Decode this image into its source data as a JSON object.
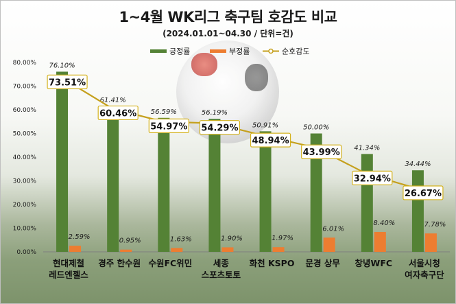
{
  "title": "1~4월 WK리그 축구팀 호감도 비교",
  "subtitle": "(2024.01.01~04.30 / 단위=건)",
  "colors": {
    "positive": "#548235",
    "negative": "#ed7d31",
    "net": "#c5a01d"
  },
  "chart_data": {
    "type": "bar",
    "title": "1~4월 WK리그 축구팀 호감도 비교",
    "subtitle": "(2024.01.01~04.30 / 단위=건)",
    "categories": [
      [
        "현대제철",
        "레드엔젤스"
      ],
      [
        "경주 한수원"
      ],
      [
        "수원FC위민"
      ],
      [
        "세종",
        "스포츠토토"
      ],
      [
        "화천 KSPO"
      ],
      [
        "문경 상무"
      ],
      [
        "창녕WFC"
      ],
      [
        "서울시청",
        "여자축구단"
      ]
    ],
    "series": [
      {
        "name": "긍정률",
        "type": "bar",
        "values": [
          76.1,
          61.41,
          56.59,
          56.19,
          50.91,
          50.0,
          41.34,
          34.44
        ],
        "labels": [
          "76.10%",
          "61.41%",
          "56.59%",
          "56.19%",
          "50.91%",
          "50.00%",
          "41.34%",
          "34.44%"
        ]
      },
      {
        "name": "부정률",
        "type": "bar",
        "values": [
          2.59,
          0.95,
          1.63,
          1.9,
          1.97,
          6.01,
          8.4,
          7.78
        ],
        "labels": [
          "2.59%",
          "0.95%",
          "1.63%",
          "1.90%",
          "1.97%",
          "6.01%",
          "8.40%",
          "7.78%"
        ]
      },
      {
        "name": "순호감도",
        "type": "line",
        "values": [
          73.51,
          60.46,
          54.97,
          54.29,
          48.94,
          43.99,
          32.94,
          26.67
        ],
        "labels": [
          "73.51%",
          "60.46%",
          "54.97%",
          "54.29%",
          "48.94%",
          "43.99%",
          "32.94%",
          "26.67%"
        ]
      }
    ],
    "ylim": [
      0,
      80
    ],
    "yticks": [
      "0.00%",
      "10.00%",
      "20.00%",
      "30.00%",
      "40.00%",
      "50.00%",
      "60.00%",
      "70.00%",
      "80.00%"
    ],
    "legend_position": "top-center",
    "grid": false
  }
}
